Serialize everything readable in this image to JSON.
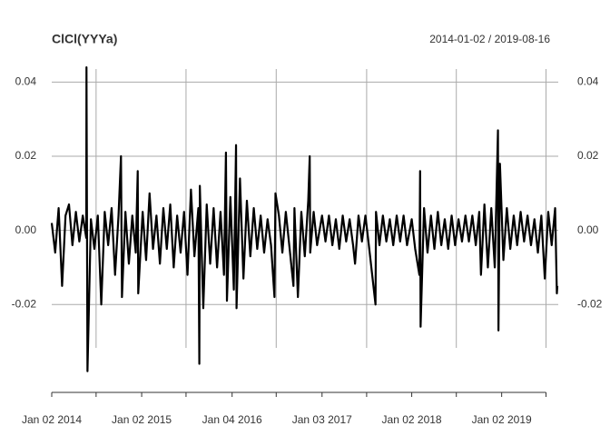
{
  "chart_data": {
    "type": "line",
    "title": "ClCl(YYYa)",
    "subtitle": "2014-01-02 / 2019-08-16",
    "x": [
      "2014-01-02",
      "2014-01-16",
      "2014-01-30",
      "2014-02-13",
      "2014-02-27",
      "2014-03-13",
      "2014-03-27",
      "2014-04-10",
      "2014-04-24",
      "2014-05-08",
      "2014-05-22",
      "2014-05-23",
      "2014-05-27",
      "2014-06-10",
      "2014-06-24",
      "2014-07-08",
      "2014-07-22",
      "2014-08-05",
      "2014-08-19",
      "2014-09-02",
      "2014-09-16",
      "2014-09-30",
      "2014-10-10",
      "2014-10-14",
      "2014-10-28",
      "2014-11-11",
      "2014-11-25",
      "2014-12-09",
      "2014-12-17",
      "2014-12-19",
      "2015-01-06",
      "2015-01-20",
      "2015-02-03",
      "2015-02-17",
      "2015-03-03",
      "2015-03-17",
      "2015-03-31",
      "2015-04-14",
      "2015-04-28",
      "2015-05-12",
      "2015-05-26",
      "2015-06-09",
      "2015-06-23",
      "2015-07-07",
      "2015-07-21",
      "2015-08-04",
      "2015-08-20",
      "2015-08-24",
      "2015-08-26",
      "2015-09-09",
      "2015-09-23",
      "2015-10-07",
      "2015-10-21",
      "2015-11-04",
      "2015-11-18",
      "2015-12-02",
      "2015-12-10",
      "2015-12-14",
      "2015-12-28",
      "2016-01-11",
      "2016-01-20",
      "2016-01-22",
      "2016-02-05",
      "2016-02-19",
      "2016-03-04",
      "2016-03-18",
      "2016-04-01",
      "2016-04-15",
      "2016-04-29",
      "2016-05-13",
      "2016-05-27",
      "2016-06-10",
      "2016-06-24",
      "2016-06-28",
      "2016-07-12",
      "2016-07-26",
      "2016-08-09",
      "2016-08-23",
      "2016-09-09",
      "2016-09-13",
      "2016-09-27",
      "2016-10-11",
      "2016-10-25",
      "2016-11-08",
      "2016-11-14",
      "2016-11-16",
      "2016-11-30",
      "2016-12-14",
      "2017-01-03",
      "2017-01-17",
      "2017-01-31",
      "2017-02-14",
      "2017-02-28",
      "2017-03-14",
      "2017-03-28",
      "2017-04-11",
      "2017-04-25",
      "2017-05-09",
      "2017-05-17",
      "2017-05-31",
      "2017-06-14",
      "2017-06-28",
      "2017-07-12",
      "2017-08-08",
      "2017-08-10",
      "2017-08-24",
      "2017-09-07",
      "2017-09-21",
      "2017-10-05",
      "2017-10-19",
      "2017-11-02",
      "2017-11-16",
      "2017-11-30",
      "2017-12-14",
      "2018-01-02",
      "2018-01-16",
      "2018-02-02",
      "2018-02-05",
      "2018-02-07",
      "2018-02-21",
      "2018-03-07",
      "2018-03-21",
      "2018-04-04",
      "2018-04-18",
      "2018-05-02",
      "2018-05-16",
      "2018-05-30",
      "2018-06-13",
      "2018-06-27",
      "2018-07-11",
      "2018-07-25",
      "2018-08-08",
      "2018-08-22",
      "2018-09-05",
      "2018-09-19",
      "2018-10-03",
      "2018-10-10",
      "2018-10-24",
      "2018-11-07",
      "2018-11-21",
      "2018-12-05",
      "2018-12-18",
      "2018-12-20",
      "2018-12-26",
      "2019-01-09",
      "2019-01-23",
      "2019-02-06",
      "2019-02-20",
      "2019-03-06",
      "2019-03-20",
      "2019-04-03",
      "2019-04-17",
      "2019-05-01",
      "2019-05-15",
      "2019-05-29",
      "2019-06-12",
      "2019-06-26",
      "2019-07-10",
      "2019-07-24",
      "2019-08-07",
      "2019-08-14",
      "2019-08-16"
    ],
    "series": [
      {
        "name": "ClCl(YYYa)",
        "color": "#000000",
        "values": [
          0.002,
          -0.006,
          0.006,
          -0.015,
          0.004,
          0.007,
          -0.004,
          0.005,
          -0.003,
          0.004,
          -0.002,
          0.044,
          -0.038,
          0.003,
          -0.005,
          0.004,
          -0.02,
          0.005,
          -0.004,
          0.006,
          -0.012,
          0.004,
          0.02,
          -0.018,
          0.005,
          -0.009,
          0.004,
          -0.006,
          0.016,
          -0.017,
          0.005,
          -0.008,
          0.01,
          -0.005,
          0.004,
          -0.009,
          0.006,
          -0.005,
          0.007,
          -0.01,
          0.004,
          -0.006,
          0.005,
          -0.012,
          0.011,
          -0.007,
          0.006,
          -0.036,
          0.012,
          -0.021,
          0.007,
          -0.009,
          0.006,
          -0.01,
          0.005,
          -0.012,
          0.021,
          -0.019,
          0.009,
          -0.016,
          0.023,
          -0.021,
          0.014,
          -0.013,
          0.008,
          -0.007,
          0.006,
          -0.005,
          0.004,
          -0.006,
          0.003,
          -0.004,
          -0.018,
          0.01,
          0.004,
          -0.006,
          0.005,
          -0.004,
          -0.015,
          0.006,
          -0.018,
          0.005,
          -0.007,
          0.008,
          0.02,
          -0.006,
          0.005,
          -0.004,
          0.004,
          -0.003,
          0.004,
          -0.004,
          0.003,
          -0.005,
          0.004,
          -0.003,
          0.003,
          -0.004,
          -0.009,
          0.004,
          -0.003,
          0.004,
          -0.004,
          -0.02,
          0.005,
          -0.004,
          0.004,
          -0.003,
          0.003,
          -0.004,
          0.004,
          -0.003,
          0.004,
          -0.004,
          0.003,
          -0.005,
          -0.012,
          0.016,
          -0.026,
          0.006,
          -0.006,
          0.004,
          -0.005,
          0.005,
          -0.004,
          0.003,
          -0.005,
          0.004,
          -0.004,
          0.003,
          -0.003,
          0.004,
          -0.003,
          0.004,
          -0.004,
          0.005,
          -0.012,
          0.007,
          -0.01,
          0.006,
          -0.01,
          0.027,
          -0.027,
          0.018,
          -0.008,
          0.006,
          -0.005,
          0.004,
          -0.004,
          0.005,
          -0.003,
          0.004,
          -0.004,
          0.003,
          -0.006,
          0.004,
          -0.013,
          0.005,
          -0.004,
          0.006,
          -0.017,
          -0.015
        ]
      }
    ],
    "xlim": [
      "2014-01-02",
      "2019-08-16"
    ],
    "xticks": [
      {
        "value": "2014-01-02",
        "label": "Jan 02 2014"
      },
      {
        "value": "2015-01-02",
        "label": "Jan 02 2015"
      },
      {
        "value": "2016-01-04",
        "label": "Jan 04 2016"
      },
      {
        "value": "2017-01-03",
        "label": "Jan 03 2017"
      },
      {
        "value": "2018-01-02",
        "label": "Jan 02 2018"
      },
      {
        "value": "2019-01-02",
        "label": "Jan 02 2019"
      }
    ],
    "xminor_ticks": [
      "2014-07-01",
      "2015-07-01",
      "2016-07-01",
      "2017-07-03",
      "2018-07-02",
      "2019-07-01"
    ],
    "ylim": [
      -0.042,
      0.045
    ],
    "yticks": [
      {
        "value": -0.02,
        "label": "-0.02"
      },
      {
        "value": 0,
        "label": "0.00"
      },
      {
        "value": 0.02,
        "label": "0.02"
      },
      {
        "value": 0.04,
        "label": "0.04"
      }
    ],
    "grid": true
  }
}
